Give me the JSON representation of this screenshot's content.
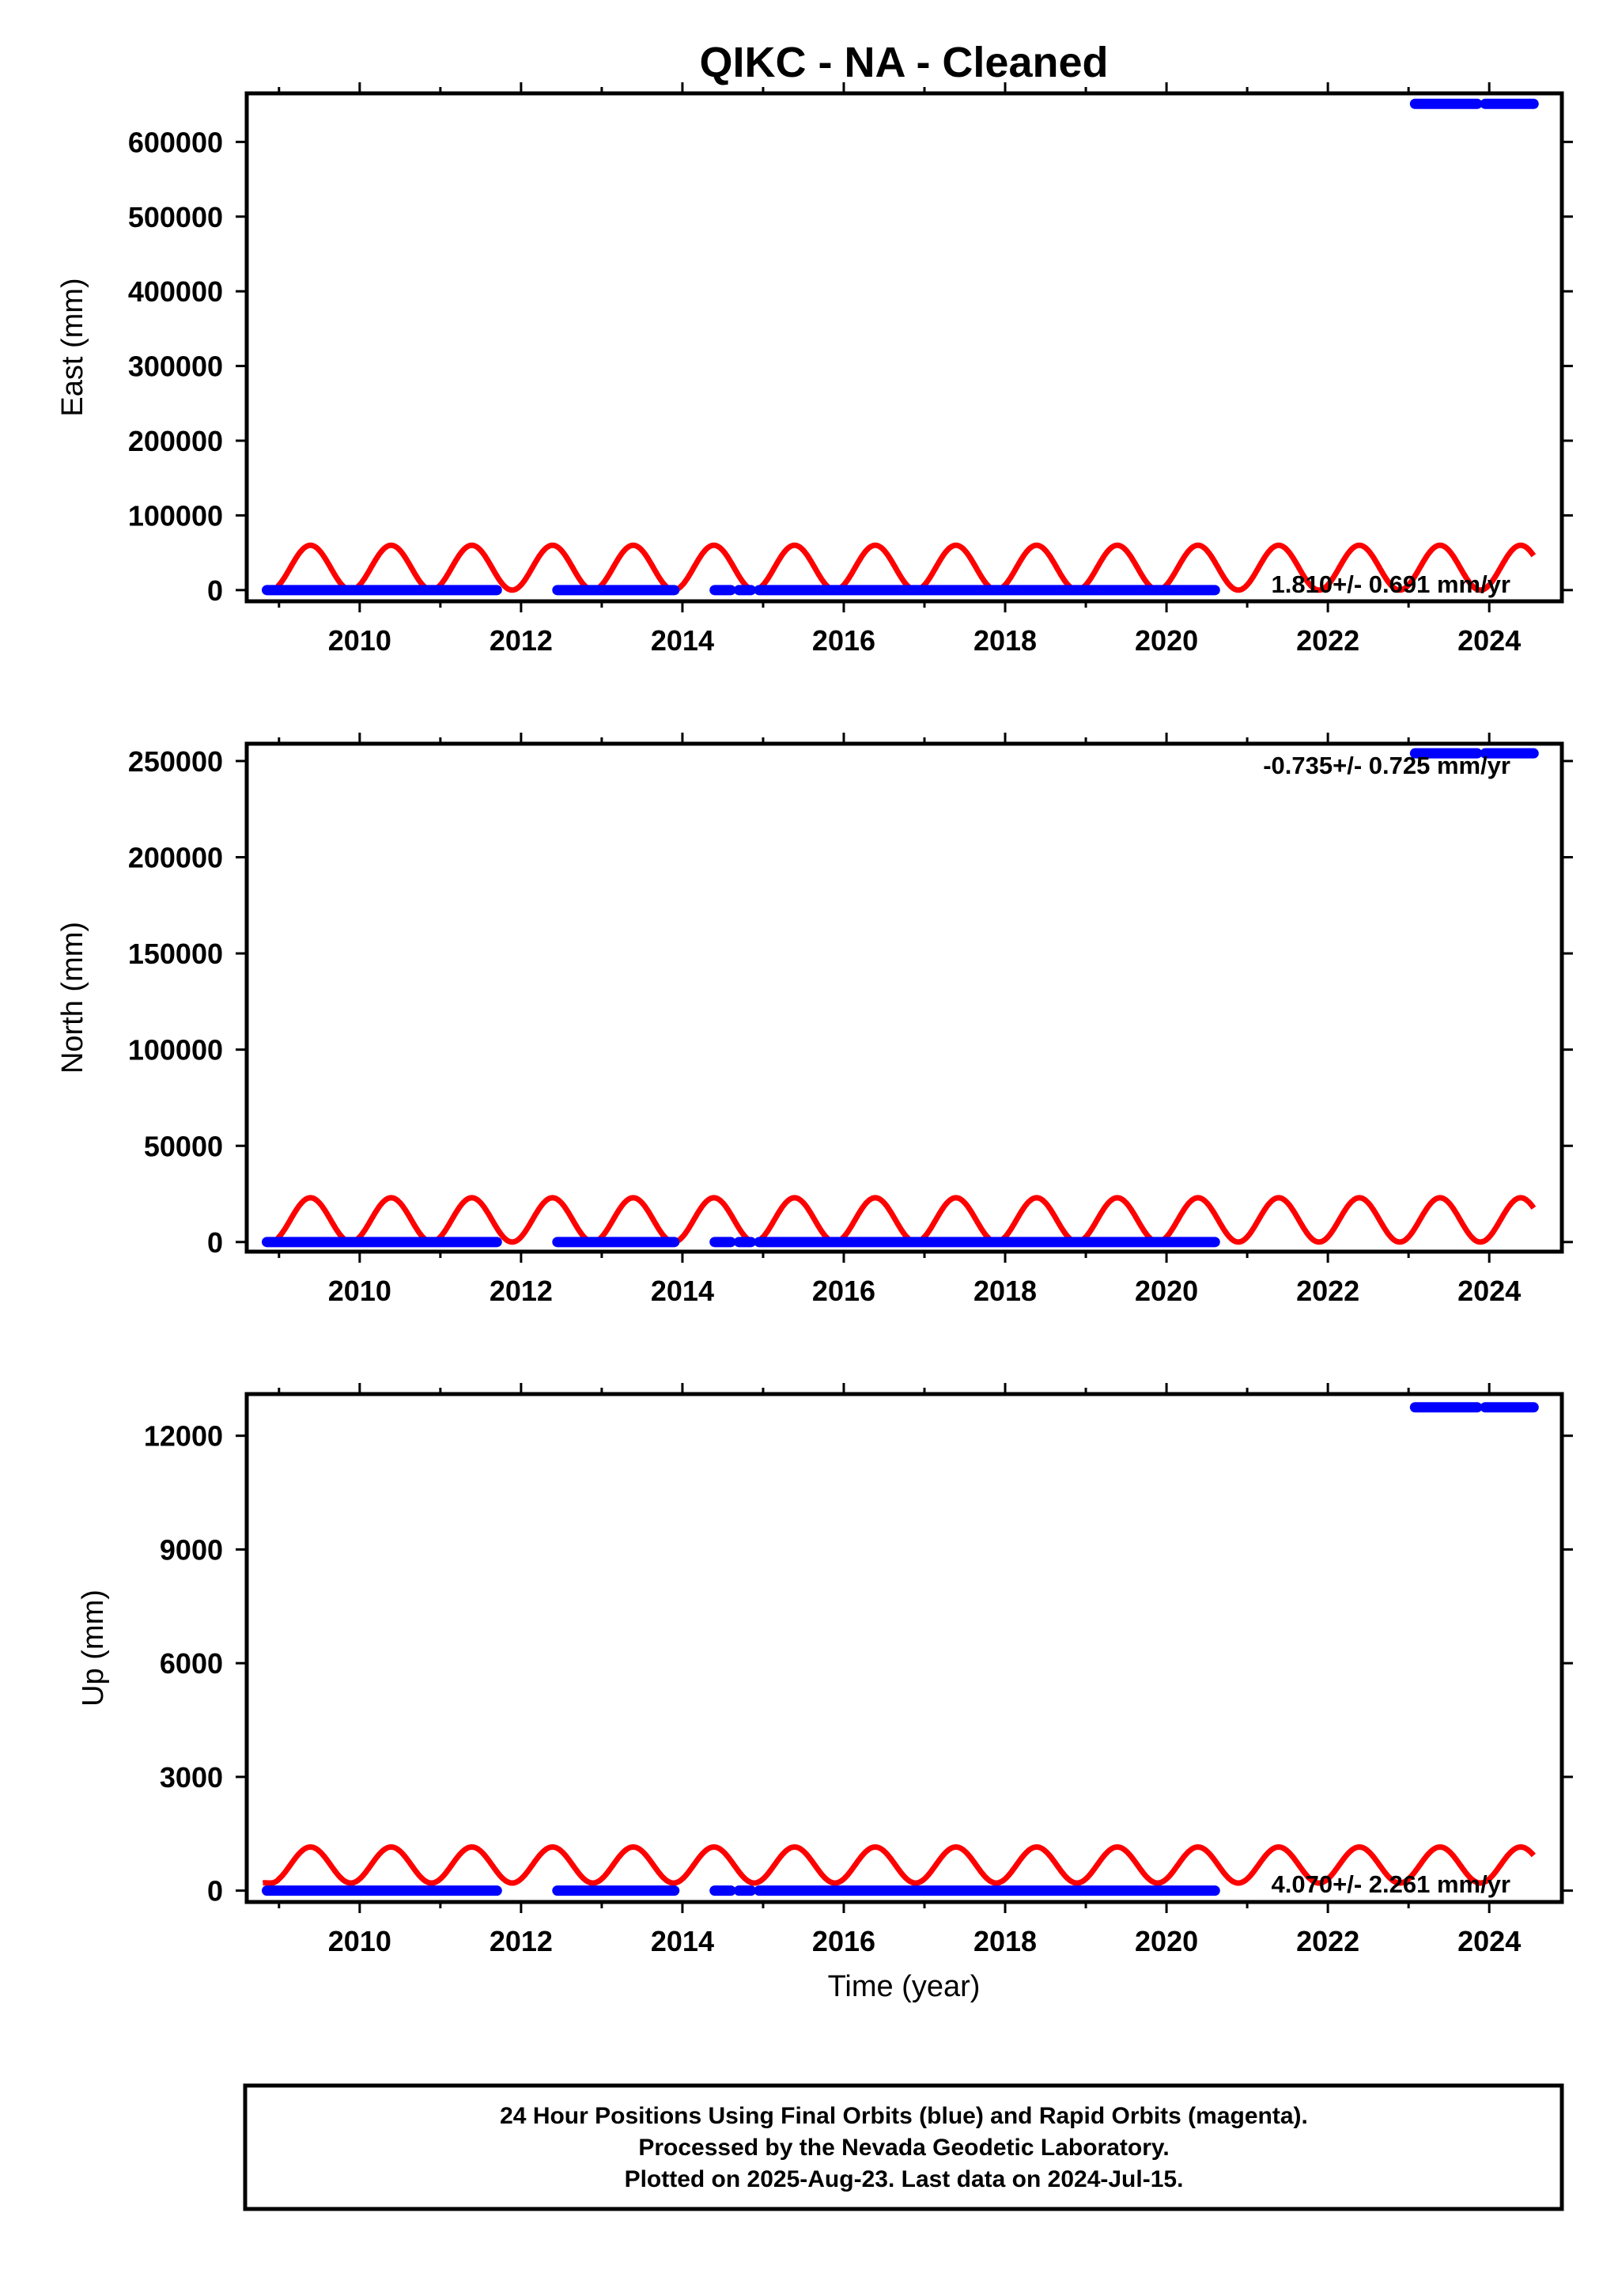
{
  "title": "QIKC  - NA - Cleaned",
  "xlabel": "Time (year)",
  "colors": {
    "final_orbits": "#0000ff",
    "model_fit": "#ff0000",
    "frame": "#000000"
  },
  "footer": {
    "line1": "24 Hour Positions Using Final Orbits (blue) and Rapid Orbits (magenta).",
    "line2": "Processed by the Nevada Geodetic Laboratory.",
    "line3": "Plotted on 2025-Aug-23. Last data on 2024-Jul-15."
  },
  "chart_data": [
    {
      "type": "scatter",
      "component": "East",
      "ylabel": "East (mm)",
      "rate_label": "1.810+/- 0.691 mm/yr",
      "xlim": [
        2008.6,
        2024.9
      ],
      "ylim": [
        -15000,
        665000
      ],
      "xticks": [
        2010,
        2012,
        2014,
        2016,
        2018,
        2020,
        2022,
        2024
      ],
      "yticks": [
        0,
        100000,
        200000,
        300000,
        400000,
        500000,
        600000
      ],
      "series": [
        {
          "segments": [
            [
              2008.85,
              2011.7
            ],
            [
              2012.45,
              2013.9
            ],
            [
              2014.4,
              2014.6
            ],
            [
              2014.7,
              2014.85
            ],
            [
              2014.95,
              2020.6
            ]
          ],
          "value": 0
        },
        {
          "segments": [
            [
              2023.08,
              2023.85
            ],
            [
              2023.95,
              2024.55
            ]
          ],
          "value": 651000
        }
      ],
      "fit": {
        "start": 2008.8,
        "end": 2024.55,
        "min": 0,
        "max": 60000
      }
    },
    {
      "type": "scatter",
      "component": "North",
      "ylabel": "North (mm)",
      "rate_label": "-0.735+/- 0.725 mm/yr",
      "xlim": [
        2008.6,
        2024.9
      ],
      "ylim": [
        -5000,
        259000
      ],
      "xticks": [
        2010,
        2012,
        2014,
        2016,
        2018,
        2020,
        2022,
        2024
      ],
      "yticks": [
        0,
        50000,
        100000,
        150000,
        200000,
        250000
      ],
      "series": [
        {
          "segments": [
            [
              2008.85,
              2011.7
            ],
            [
              2012.45,
              2013.9
            ],
            [
              2014.4,
              2014.6
            ],
            [
              2014.7,
              2014.85
            ],
            [
              2014.95,
              2020.6
            ]
          ],
          "value": 0
        },
        {
          "segments": [
            [
              2023.08,
              2023.85
            ],
            [
              2023.95,
              2024.55
            ]
          ],
          "value": 254000
        }
      ],
      "fit": {
        "start": 2008.8,
        "end": 2024.55,
        "min": 0,
        "max": 23000
      }
    },
    {
      "type": "scatter",
      "component": "Up",
      "ylabel": "Up (mm)",
      "rate_label": "4.070+/- 2.261 mm/yr",
      "xlim": [
        2008.6,
        2024.9
      ],
      "ylim": [
        -300,
        13100
      ],
      "xticks": [
        2010,
        2012,
        2014,
        2016,
        2018,
        2020,
        2022,
        2024
      ],
      "yticks": [
        0,
        3000,
        6000,
        9000,
        12000
      ],
      "series": [
        {
          "segments": [
            [
              2008.85,
              2011.7
            ],
            [
              2012.45,
              2013.9
            ],
            [
              2014.4,
              2014.6
            ],
            [
              2014.7,
              2014.85
            ],
            [
              2014.95,
              2020.6
            ]
          ],
          "value": 0
        },
        {
          "segments": [
            [
              2023.08,
              2023.85
            ],
            [
              2023.95,
              2024.55
            ]
          ],
          "value": 12750
        }
      ],
      "fit": {
        "start": 2008.8,
        "end": 2024.55,
        "min": 200,
        "max": 1150
      }
    }
  ]
}
